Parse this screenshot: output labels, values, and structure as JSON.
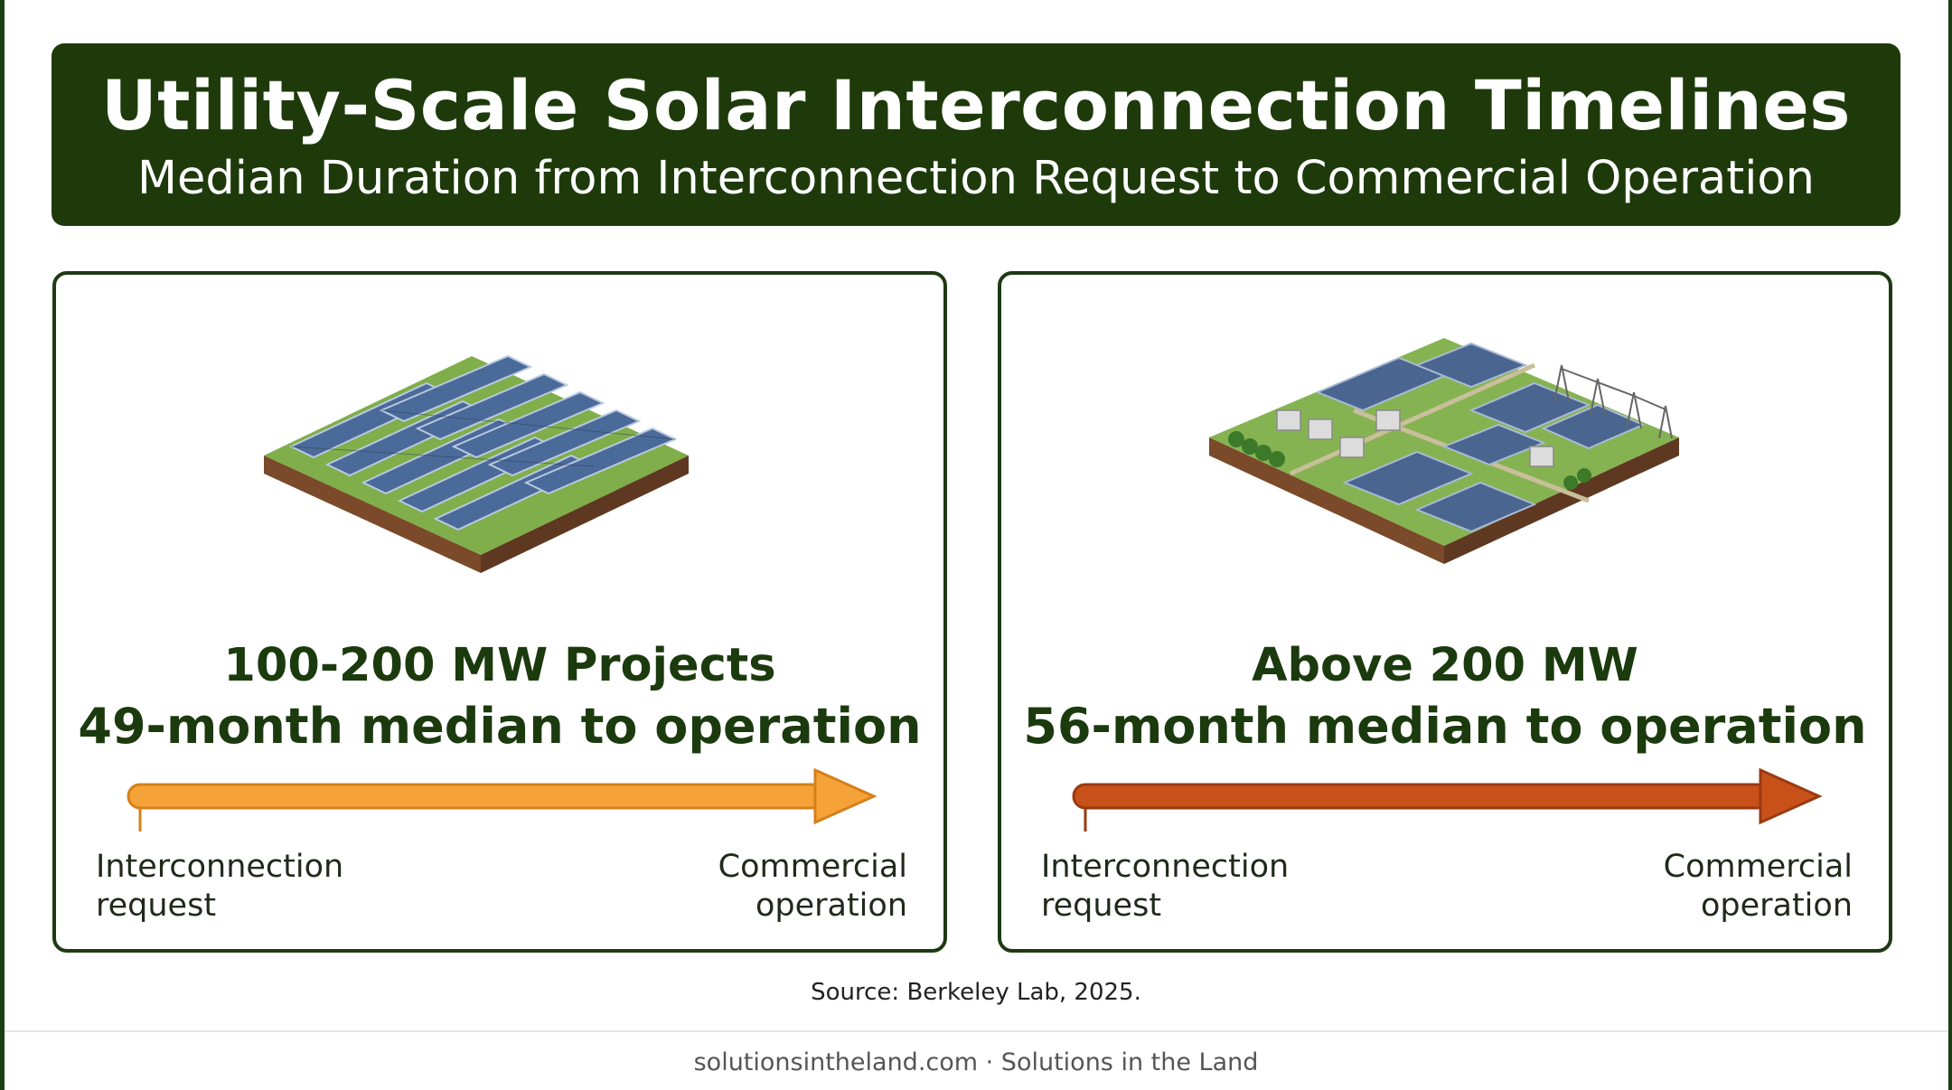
{
  "header": {
    "title": "Utility-Scale Solar Interconnection Timelines",
    "subtitle": "Median Duration from Interconnection Request to Commercial Operation"
  },
  "cards": [
    {
      "heading": "100-200 MW Projects",
      "median": "49-month median to operation",
      "start_label": [
        "Interconnection",
        "request"
      ],
      "end_label": [
        "Commercial",
        "operation"
      ],
      "arrow_color": "#f5a238",
      "illustration": "solar-array-illustration"
    },
    {
      "heading": "Above 200 MW",
      "median": "56-month median to operation",
      "start_label": [
        "Interconnection",
        "request"
      ],
      "end_label": [
        "Commercial",
        "operation"
      ],
      "arrow_color": "#c8511a",
      "illustration": "solar-farm-substation-illustration"
    }
  ],
  "source": "Source: Berkeley Lab, 2025.",
  "footer": "solutionsintheland.com · Solutions in the Land",
  "colors": {
    "header_bg": "#1e3a0b",
    "heading_text": "#1b3a0e",
    "card_border": "#1e3a14"
  }
}
